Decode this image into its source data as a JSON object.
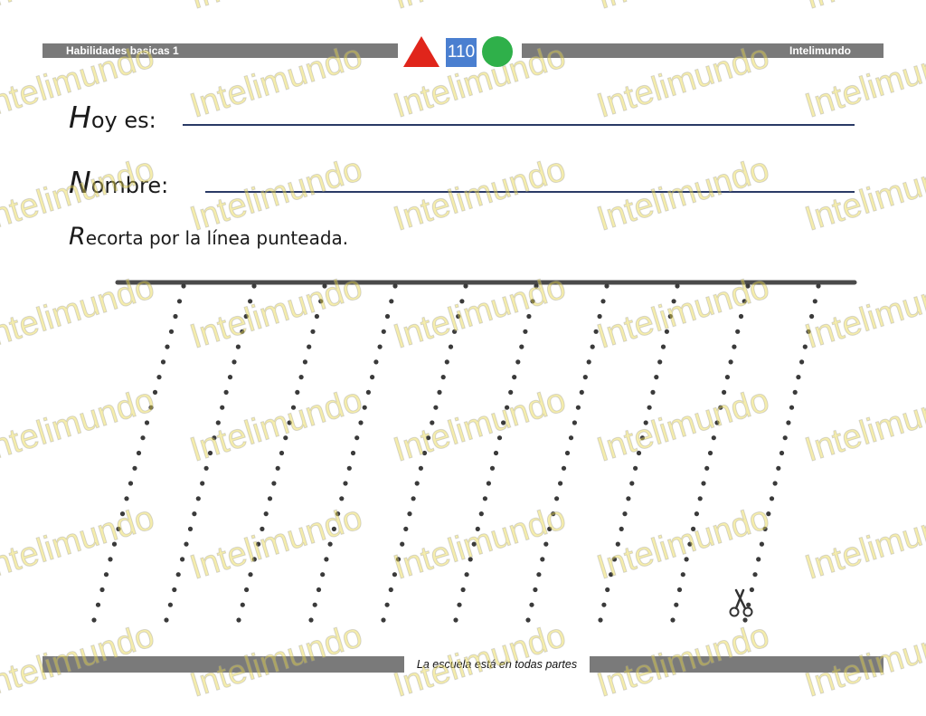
{
  "header": {
    "left_title": "Habilidades basicas 1",
    "right_brand": "Intelimundo",
    "page_number": "110",
    "shape_colors": {
      "triangle": "#e0251b",
      "square": "#4a7fd0",
      "circle": "#2fb04a"
    }
  },
  "form": {
    "date_cap": "H",
    "date_rest": "oy es:",
    "name_cap": "N",
    "name_rest": "ombre:"
  },
  "instruction": {
    "cap": "R",
    "rest": "ecorta por la línea punteada."
  },
  "exercise": {
    "dotted_line_count": 10,
    "icons": [
      "scissors-icon"
    ]
  },
  "footer": {
    "slogan": "La escuela está en todas partes"
  },
  "watermark": {
    "text": "Intelimundo",
    "color": "#e8d84a"
  }
}
